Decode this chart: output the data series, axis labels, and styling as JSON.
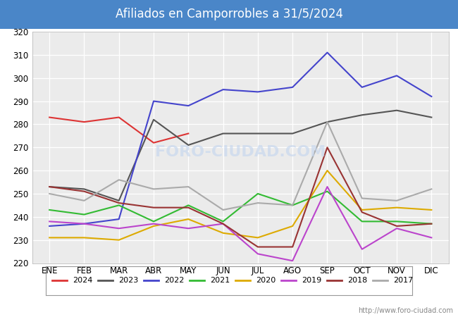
{
  "title": "Afiliados en Camporrobles a 31/5/2024",
  "title_bg_color": "#4a86c8",
  "title_text_color": "white",
  "ylim": [
    220,
    320
  ],
  "yticks": [
    220,
    230,
    240,
    250,
    260,
    270,
    280,
    290,
    300,
    310,
    320
  ],
  "months": [
    "ENE",
    "FEB",
    "MAR",
    "ABR",
    "MAY",
    "JUN",
    "JUL",
    "AGO",
    "SEP",
    "OCT",
    "NOV",
    "DIC"
  ],
  "watermark": "FORO-CIUDAD.COM",
  "url": "http://www.foro-ciudad.com",
  "series": {
    "2024": {
      "color": "#dd3333",
      "data": [
        283,
        281,
        283,
        272,
        276,
        null,
        null,
        null,
        null,
        null,
        null,
        null
      ]
    },
    "2023": {
      "color": "#555555",
      "data": [
        253,
        252,
        247,
        282,
        271,
        276,
        276,
        276,
        281,
        284,
        286,
        283
      ]
    },
    "2022": {
      "color": "#4444cc",
      "data": [
        236,
        237,
        239,
        290,
        288,
        295,
        294,
        296,
        311,
        296,
        301,
        292
      ]
    },
    "2021": {
      "color": "#33bb33",
      "data": [
        243,
        241,
        245,
        238,
        245,
        238,
        250,
        245,
        251,
        238,
        238,
        237
      ]
    },
    "2020": {
      "color": "#ddaa00",
      "data": [
        231,
        231,
        230,
        236,
        239,
        233,
        231,
        236,
        260,
        243,
        244,
        243
      ]
    },
    "2019": {
      "color": "#bb44cc",
      "data": [
        238,
        237,
        235,
        237,
        235,
        237,
        224,
        221,
        253,
        226,
        235,
        231
      ]
    },
    "2018": {
      "color": "#993333",
      "data": [
        253,
        251,
        246,
        244,
        244,
        237,
        227,
        227,
        270,
        242,
        236,
        237
      ]
    },
    "2017": {
      "color": "#aaaaaa",
      "data": [
        250,
        247,
        256,
        252,
        253,
        243,
        246,
        245,
        281,
        248,
        247,
        252
      ]
    }
  },
  "series_order": [
    "2024",
    "2023",
    "2022",
    "2021",
    "2020",
    "2019",
    "2018",
    "2017"
  ]
}
